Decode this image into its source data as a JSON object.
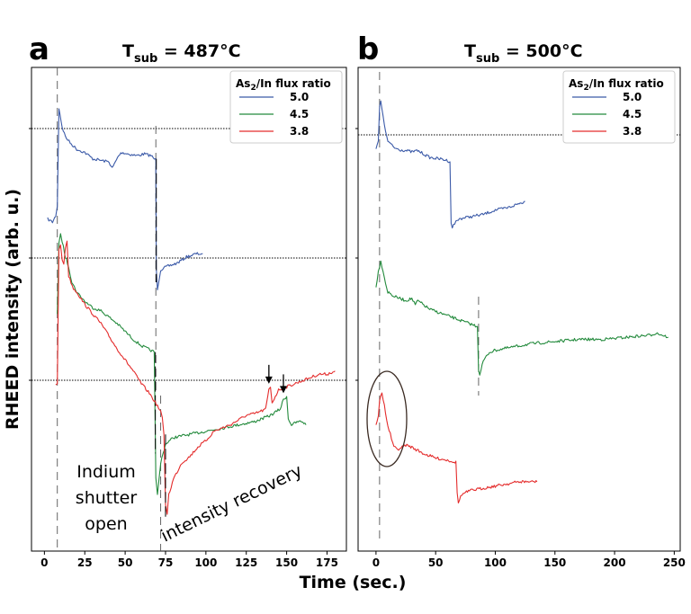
{
  "chart_data": [
    {
      "type": "line",
      "panel_label": "a",
      "title": "T_sub = 487°C",
      "title_main": "T",
      "title_sub": "sub",
      "title_rest": " = 487°C",
      "xlabel": "Time (sec.)",
      "ylabel": "RHEED intensity (arb. u.)",
      "xlim": [
        -8,
        187
      ],
      "x_ticks": [
        0,
        25,
        50,
        75,
        100,
        125,
        150,
        175
      ],
      "legend": {
        "title_main": "As",
        "title_sub": "2",
        "title_rest": "/In flux ratio",
        "placement": "top-right"
      },
      "series": [
        {
          "name": "5.0",
          "color": "#3b5aa8",
          "points": [
            [
              2,
              0.6
            ],
            [
              5,
              0.59
            ],
            [
              7,
              0.61
            ],
            [
              8,
              0.64
            ],
            [
              9,
              0.95
            ],
            [
              11,
              0.89
            ],
            [
              13,
              0.86
            ],
            [
              16,
              0.84
            ],
            [
              20,
              0.82
            ],
            [
              25,
              0.81
            ],
            [
              30,
              0.79
            ],
            [
              35,
              0.785
            ],
            [
              40,
              0.78
            ],
            [
              42,
              0.76
            ],
            [
              44,
              0.78
            ],
            [
              46,
              0.8
            ],
            [
              48,
              0.81
            ],
            [
              52,
              0.805
            ],
            [
              57,
              0.8
            ],
            [
              62,
              0.805
            ],
            [
              66,
              0.8
            ],
            [
              68,
              0.79
            ],
            [
              69,
              0.79
            ],
            [
              69.3,
              0.44
            ],
            [
              70,
              0.38
            ],
            [
              72,
              0.44
            ],
            [
              76,
              0.45
            ],
            [
              82,
              0.46
            ],
            [
              88,
              0.48
            ],
            [
              94,
              0.49
            ],
            [
              98,
              0.49
            ]
          ]
        },
        {
          "name": "4.5",
          "color": "#238a3c",
          "points": [
            [
              8,
              0.3
            ],
            [
              9,
              0.52
            ],
            [
              10,
              0.55
            ],
            [
              11,
              0.53
            ],
            [
              13,
              0.48
            ],
            [
              15,
              0.45
            ],
            [
              17,
              0.4
            ],
            [
              20,
              0.37
            ],
            [
              25,
              0.34
            ],
            [
              30,
              0.32
            ],
            [
              35,
              0.31
            ],
            [
              40,
              0.29
            ],
            [
              45,
              0.27
            ],
            [
              50,
              0.245
            ],
            [
              55,
              0.22
            ],
            [
              60,
              0.2
            ],
            [
              64,
              0.19
            ],
            [
              66,
              0.185
            ],
            [
              68,
              0.18
            ],
            [
              68.7,
              -0.1
            ],
            [
              69,
              -0.22
            ],
            [
              70,
              -0.27
            ],
            [
              72,
              -0.17
            ],
            [
              75,
              -0.11
            ],
            [
              80,
              -0.09
            ],
            [
              90,
              -0.08
            ],
            [
              100,
              -0.07
            ],
            [
              110,
              -0.06
            ],
            [
              120,
              -0.05
            ],
            [
              130,
              -0.04
            ],
            [
              140,
              -0.02
            ],
            [
              146,
              0.0
            ],
            [
              148,
              0.03
            ],
            [
              150,
              0.04
            ],
            [
              151,
              -0.03
            ],
            [
              153,
              -0.05
            ],
            [
              157,
              -0.04
            ],
            [
              160,
              -0.04
            ],
            [
              162,
              -0.05
            ]
          ]
        },
        {
          "name": "3.8",
          "color": "#e42c2c",
          "points": [
            [
              7,
              0.08
            ],
            [
              8,
              0.08
            ],
            [
              9,
              0.5
            ],
            [
              10,
              0.52
            ],
            [
              11,
              0.47
            ],
            [
              12,
              0.46
            ],
            [
              13,
              0.51
            ],
            [
              14,
              0.53
            ],
            [
              15,
              0.42
            ],
            [
              18,
              0.38
            ],
            [
              20,
              0.37
            ],
            [
              25,
              0.33
            ],
            [
              30,
              0.3
            ],
            [
              35,
              0.27
            ],
            [
              40,
              0.23
            ],
            [
              45,
              0.19
            ],
            [
              50,
              0.155
            ],
            [
              55,
              0.12
            ],
            [
              60,
              0.08
            ],
            [
              65,
              0.05
            ],
            [
              70,
              0.01
            ],
            [
              72,
              -0.01
            ],
            [
              73,
              -0.03
            ],
            [
              74,
              -0.08
            ],
            [
              75,
              -0.3
            ],
            [
              76,
              -0.33
            ],
            [
              77,
              -0.27
            ],
            [
              80,
              -0.22
            ],
            [
              85,
              -0.17
            ],
            [
              90,
              -0.15
            ],
            [
              95,
              -0.12
            ],
            [
              100,
              -0.1
            ],
            [
              105,
              -0.07
            ],
            [
              110,
              -0.06
            ],
            [
              115,
              -0.05
            ],
            [
              120,
              -0.035
            ],
            [
              125,
              -0.02
            ],
            [
              130,
              -0.015
            ],
            [
              135,
              -0.005
            ],
            [
              137,
              0.0
            ],
            [
              139,
              0.06
            ],
            [
              140,
              0.07
            ],
            [
              141,
              0.02
            ],
            [
              145,
              0.06
            ],
            [
              150,
              0.07
            ],
            [
              155,
              0.08
            ],
            [
              160,
              0.09
            ],
            [
              165,
              0.1
            ],
            [
              170,
              0.11
            ],
            [
              175,
              0.11
            ],
            [
              180,
              0.12
            ]
          ]
        }
      ],
      "arrows": [
        {
          "x": 148,
          "label_series": "4.5"
        },
        {
          "x": 139,
          "label_series": "3.8"
        }
      ],
      "annotations": [
        {
          "lines": [
            "Indium",
            "shutter",
            "open"
          ]
        },
        {
          "text": "intensity recovery"
        }
      ]
    },
    {
      "type": "line",
      "panel_label": "b",
      "title": "T_sub = 500°C",
      "title_main": "T",
      "title_sub": "sub",
      "title_rest": " = 500°C",
      "xlim": [
        -15,
        255
      ],
      "x_ticks": [
        0,
        50,
        100,
        150,
        200,
        250
      ],
      "legend": {
        "title_main": "As",
        "title_sub": "2",
        "title_rest": "/In flux ratio",
        "placement": "top-right"
      },
      "series": [
        {
          "name": "5.0",
          "color": "#3b5aa8",
          "points": [
            [
              0,
              0.88
            ],
            [
              2,
              0.9
            ],
            [
              3,
              0.98
            ],
            [
              4,
              0.99
            ],
            [
              6,
              0.96
            ],
            [
              8,
              0.92
            ],
            [
              10,
              0.9
            ],
            [
              15,
              0.885
            ],
            [
              20,
              0.88
            ],
            [
              25,
              0.878
            ],
            [
              30,
              0.875
            ],
            [
              35,
              0.878
            ],
            [
              40,
              0.87
            ],
            [
              45,
              0.862
            ],
            [
              50,
              0.86
            ],
            [
              55,
              0.858
            ],
            [
              60,
              0.855
            ],
            [
              62,
              0.852
            ],
            [
              63,
              0.71
            ],
            [
              64,
              0.7
            ],
            [
              66,
              0.71
            ],
            [
              70,
              0.72
            ],
            [
              80,
              0.725
            ],
            [
              90,
              0.73
            ],
            [
              100,
              0.74
            ],
            [
              110,
              0.745
            ],
            [
              120,
              0.755
            ],
            [
              125,
              0.76
            ]
          ]
        },
        {
          "name": "4.5",
          "color": "#238a3c",
          "points": [
            [
              0,
              0.56
            ],
            [
              2,
              0.6
            ],
            [
              4,
              0.62
            ],
            [
              6,
              0.6
            ],
            [
              8,
              0.57
            ],
            [
              10,
              0.55
            ],
            [
              15,
              0.54
            ],
            [
              20,
              0.535
            ],
            [
              25,
              0.53
            ],
            [
              30,
              0.535
            ],
            [
              33,
              0.52
            ],
            [
              35,
              0.53
            ],
            [
              40,
              0.52
            ],
            [
              45,
              0.51
            ],
            [
              50,
              0.505
            ],
            [
              55,
              0.5
            ],
            [
              60,
              0.495
            ],
            [
              65,
              0.49
            ],
            [
              70,
              0.485
            ],
            [
              75,
              0.48
            ],
            [
              80,
              0.475
            ],
            [
              85,
              0.47
            ],
            [
              86,
              0.37
            ],
            [
              87,
              0.36
            ],
            [
              90,
              0.39
            ],
            [
              95,
              0.41
            ],
            [
              100,
              0.415
            ],
            [
              110,
              0.42
            ],
            [
              120,
              0.425
            ],
            [
              130,
              0.43
            ],
            [
              150,
              0.435
            ],
            [
              170,
              0.44
            ],
            [
              190,
              0.44
            ],
            [
              210,
              0.445
            ],
            [
              230,
              0.45
            ],
            [
              235,
              0.455
            ],
            [
              240,
              0.45
            ],
            [
              245,
              0.445
            ]
          ]
        },
        {
          "name": "3.8",
          "color": "#e42c2c",
          "points": [
            [
              0,
              0.24
            ],
            [
              2,
              0.26
            ],
            [
              3,
              0.3
            ],
            [
              5,
              0.315
            ],
            [
              7,
              0.29
            ],
            [
              9,
              0.25
            ],
            [
              12,
              0.22
            ],
            [
              15,
              0.19
            ],
            [
              18,
              0.185
            ],
            [
              22,
              0.19
            ],
            [
              25,
              0.195
            ],
            [
              30,
              0.19
            ],
            [
              40,
              0.175
            ],
            [
              50,
              0.165
            ],
            [
              60,
              0.16
            ],
            [
              67,
              0.155
            ],
            [
              68,
              0.085
            ],
            [
              69,
              0.06
            ],
            [
              70,
              0.07
            ],
            [
              72,
              0.08
            ],
            [
              75,
              0.085
            ],
            [
              80,
              0.09
            ],
            [
              90,
              0.095
            ],
            [
              100,
              0.1
            ],
            [
              110,
              0.105
            ],
            [
              120,
              0.11
            ],
            [
              130,
              0.11
            ],
            [
              135,
              0.11
            ]
          ]
        }
      ]
    }
  ]
}
